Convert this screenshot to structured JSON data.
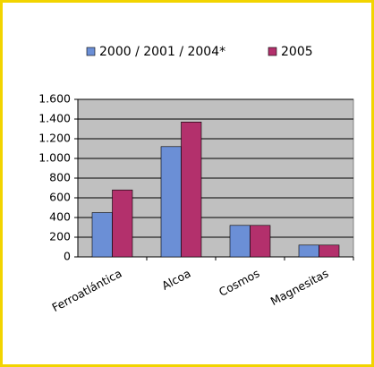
{
  "chart_data": {
    "type": "bar",
    "categories": [
      "Ferroatlántica",
      "Alcoa",
      "Cosmos",
      "Magnesitas"
    ],
    "series": [
      {
        "name": "2000 / 2001 / 2004*",
        "color": "#6b8fd6",
        "values": [
          450,
          1120,
          320,
          120
        ]
      },
      {
        "name": "2005",
        "color": "#b3306c",
        "values": [
          680,
          1370,
          320,
          120
        ]
      }
    ],
    "ylim": [
      0,
      1600
    ],
    "yticks": [
      0,
      200,
      400,
      600,
      800,
      {
        "value": 1000,
        "label": "1.000"
      },
      {
        "value": 1200,
        "label": "1.200"
      },
      {
        "value": 1400,
        "label": "1.400"
      },
      {
        "value": 1600,
        "label": "1.600"
      }
    ],
    "grid": true,
    "legend": "top"
  }
}
